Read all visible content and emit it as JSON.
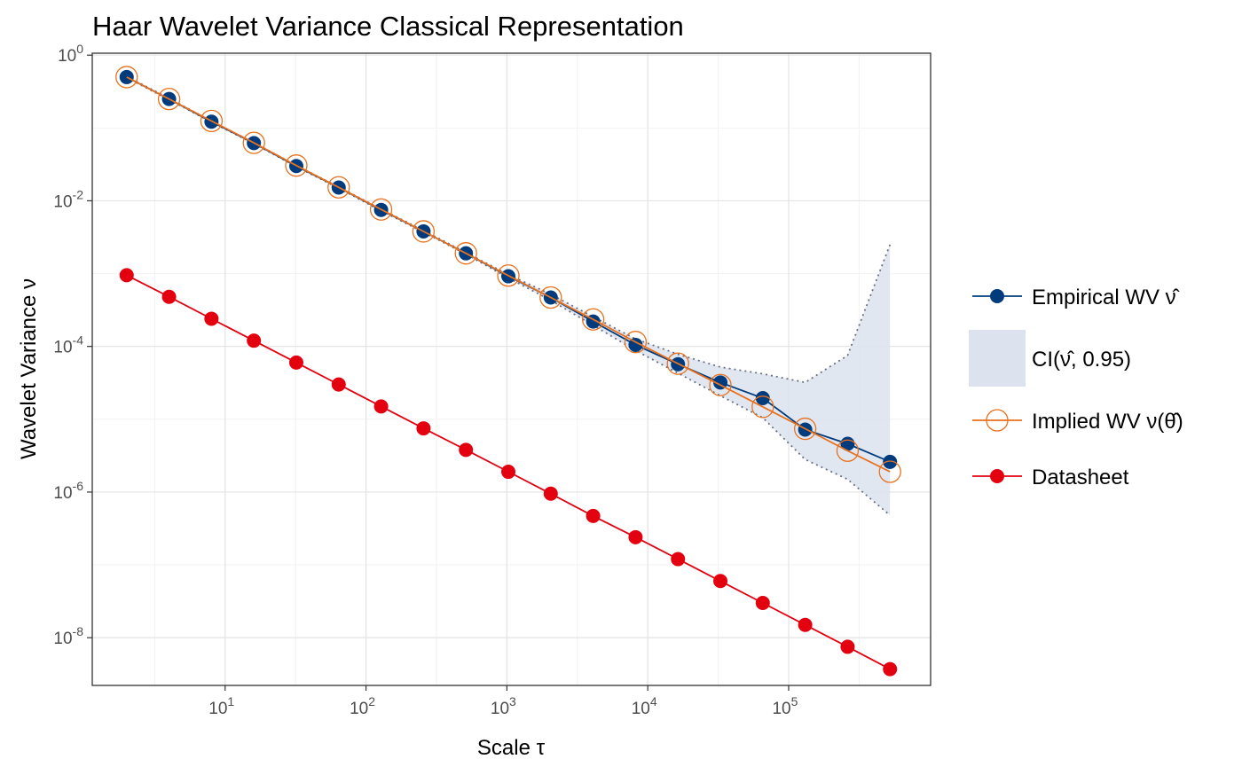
{
  "chart_data": {
    "type": "line",
    "title": "Haar Wavelet Variance Classical Representation",
    "xlabel": "Scale τ",
    "ylabel": "Wavelet Variance ν",
    "x_scale": "log10",
    "y_scale": "log10",
    "xlim": [
      1.14,
      1018000
    ],
    "ylim": [
      2.21e-09,
      1.064
    ],
    "x_ticks": [
      {
        "value": 10,
        "base": "10",
        "exp": "1"
      },
      {
        "value": 100,
        "base": "10",
        "exp": "2"
      },
      {
        "value": 1000,
        "base": "10",
        "exp": "3"
      },
      {
        "value": 10000,
        "base": "10",
        "exp": "4"
      },
      {
        "value": 100000,
        "base": "10",
        "exp": "5"
      }
    ],
    "y_ticks": [
      {
        "value": 1,
        "base": "10",
        "exp": "0"
      },
      {
        "value": 0.01,
        "base": "10",
        "exp": "-2"
      },
      {
        "value": 0.0001,
        "base": "10",
        "exp": "-4"
      },
      {
        "value": 1e-06,
        "base": "10",
        "exp": "-6"
      },
      {
        "value": 1e-08,
        "base": "10",
        "exp": "-8"
      }
    ],
    "grid": true,
    "legend_position": "right",
    "x": [
      2,
      4,
      8,
      16,
      32,
      64,
      128,
      256,
      512,
      1024,
      2048,
      4096,
      8192,
      16384,
      32768,
      65536,
      131072,
      262144,
      524288
    ],
    "series": [
      {
        "name": "Empirical WV",
        "legend_symbol": "ν̂",
        "color": "#003c7d",
        "marker": "filled-circle",
        "values": [
          0.5,
          0.25,
          0.122,
          0.062,
          0.03,
          0.0152,
          0.0075,
          0.0038,
          0.0019,
          0.00092,
          0.00047,
          0.00022,
          0.000105,
          5.7e-05,
          3.2e-05,
          1.95e-05,
          7.2e-06,
          4.6e-06,
          2.6e-06
        ]
      },
      {
        "name": "Implied WV",
        "legend_symbol": "ν(θ̂)",
        "color": "#e8711e",
        "marker": "open-circle",
        "values": [
          0.5,
          0.25,
          0.125,
          0.0625,
          0.0305,
          0.0153,
          0.0076,
          0.0038,
          0.0019,
          0.00094,
          0.00047,
          0.000235,
          0.000115,
          5.8e-05,
          2.95e-05,
          1.48e-05,
          7.4e-06,
          3.7e-06,
          1.9e-06
        ]
      },
      {
        "name": "Datasheet",
        "color": "#e3000f",
        "marker": "filled-circle",
        "values": [
          0.00095,
          0.00048,
          0.00024,
          0.00012,
          6e-05,
          3e-05,
          1.5e-05,
          7.5e-06,
          3.8e-06,
          1.9e-06,
          9.5e-07,
          4.7e-07,
          2.4e-07,
          1.2e-07,
          6e-08,
          3e-08,
          1.5e-08,
          7.5e-09,
          3.7e-09
        ]
      }
    ],
    "confidence_band": {
      "name": "CI",
      "legend_label": "CI(ν̂, 0.95)",
      "color": "#dce3ef",
      "lower": [
        0.49,
        0.245,
        0.12,
        0.061,
        0.0295,
        0.0149,
        0.0073,
        0.0037,
        0.00185,
        0.00087,
        0.00043,
        0.000195,
        8.8e-05,
        4.3e-05,
        2.1e-05,
        1.05e-05,
        2.8e-06,
        1.5e-06,
        4.8e-07
      ],
      "upper": [
        0.51,
        0.255,
        0.124,
        0.063,
        0.0305,
        0.0155,
        0.0077,
        0.0039,
        0.00195,
        0.00097,
        0.00052,
        0.000255,
        0.000127,
        7.8e-05,
        5.2e-05,
        4.2e-05,
        3.2e-05,
        7.5e-05,
        0.0025
      ]
    }
  }
}
